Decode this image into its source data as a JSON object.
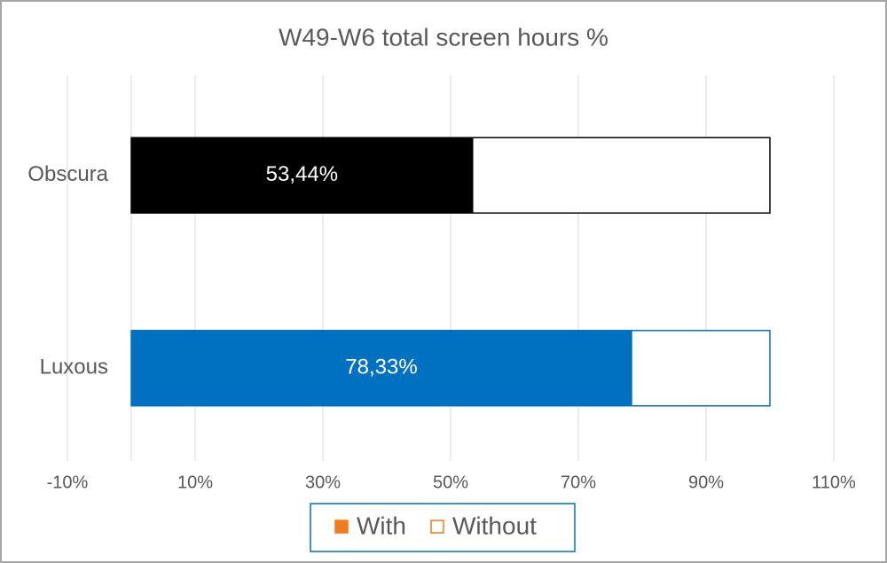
{
  "chart_data": {
    "type": "stacked-horizontal-bar",
    "title": "W49-W6 total screen hours %",
    "categories": [
      "Obscura",
      "Luxous"
    ],
    "category_colors": [
      "#000000",
      "#0070c0"
    ],
    "series": [
      {
        "name": "With",
        "color": "#f07c1c",
        "values": [
          53.44,
          78.33
        ],
        "value_labels": [
          "53,44%",
          "78,33%"
        ]
      },
      {
        "name": "Without",
        "color": "#f07c1c",
        "values": [
          46.56,
          21.67
        ]
      }
    ],
    "xlim": [
      -10,
      110
    ],
    "xticks": [
      {
        "value": -10,
        "label": "-10%"
      },
      {
        "value": 10,
        "label": "10%"
      },
      {
        "value": 30,
        "label": "30%"
      },
      {
        "value": 50,
        "label": "50%"
      },
      {
        "value": 70,
        "label": "70%"
      },
      {
        "value": 90,
        "label": "90%"
      },
      {
        "value": 110,
        "label": "110%"
      }
    ],
    "grid": true,
    "legend": "bottom"
  }
}
